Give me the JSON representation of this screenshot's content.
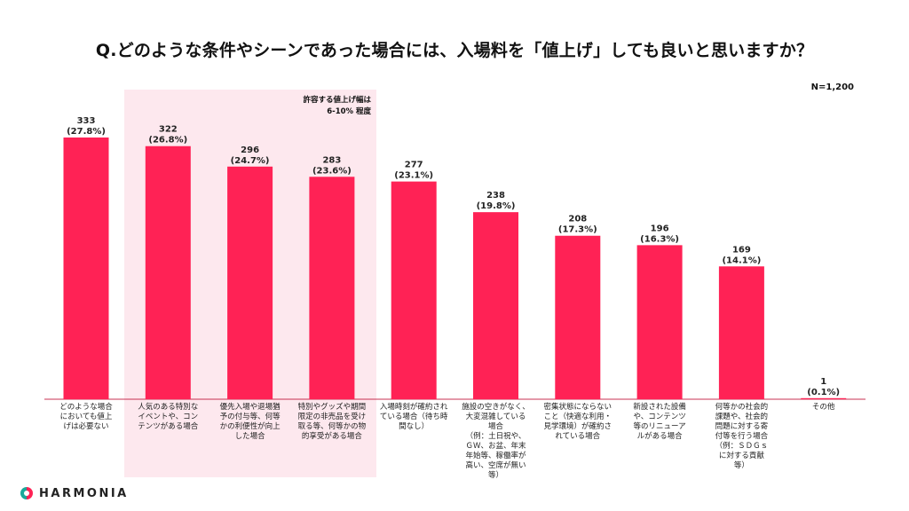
{
  "title": "Q.どのような条件やシーンであった場合には、入場料を「値上げ」しても良いと思いますか？",
  "sample_size": "N=1,200",
  "highlight_note": [
    "許容する値上げ幅は",
    "6-10% 程度"
  ],
  "brand": "HARMONIA",
  "colors": {
    "bar": "#ff2255",
    "highlight": "#fde8ee",
    "axis": "#c83050"
  },
  "chart_data": {
    "type": "bar",
    "title": "Q.どのような条件やシーンであった場合には、入場料を「値上げ」しても良いと思いますか？",
    "categories": [
      [
        "どのような場合",
        "においても値上",
        "げは必要ない"
      ],
      [
        "人気のある特別な",
        "イベントや、コン",
        "テンツがある場合"
      ],
      [
        "優先入場や退場猶",
        "予の付与等、何等",
        "かの利便性が向上",
        "した場合"
      ],
      [
        "特別やグッズや期間",
        "限定の非売品を受け",
        "取る等、何等かの物",
        "的享受がある場合"
      ],
      [
        "入場時刻が確約され",
        "ている場合（待ち時",
        "間なし）"
      ],
      [
        "施設の空きがなく、",
        "大変混雑している",
        "場合",
        "（例：土日祝や、",
        "ＧＷ、お盆、年末",
        "年始等、稼働率が",
        "高い、空席が無い",
        "等）"
      ],
      [
        "密集状態にならない",
        "こと（快適な利用・",
        "見学環境）が確約さ",
        "れている場合"
      ],
      [
        "新設された設備",
        "や、コンテンツ",
        "等のリニューア",
        "ルがある場合"
      ],
      [
        "何等かの社会的",
        "課題や、社会的",
        "問題に対する寄",
        "付等を行う場合",
        "（例：ＳＤＧｓ",
        "に対する貢献",
        "等）"
      ],
      [
        "その他"
      ]
    ],
    "values": [
      333,
      322,
      296,
      283,
      277,
      238,
      208,
      196,
      169,
      1
    ],
    "value_labels": [
      "333",
      "322",
      "296",
      "283",
      "277",
      "238",
      "208",
      "196",
      "169",
      "1"
    ],
    "percent_labels": [
      "(27.8%)",
      "(26.8%)",
      "(24.7%)",
      "(23.6%)",
      "(23.1%)",
      "(19.8%)",
      "(17.3%)",
      "(16.3%)",
      "(14.1%)",
      "(0.1%)"
    ],
    "highlighted_categories": [
      1,
      2,
      3
    ],
    "ylim": [
      0,
      333
    ],
    "grid": false,
    "xlabel": "",
    "ylabel": ""
  }
}
